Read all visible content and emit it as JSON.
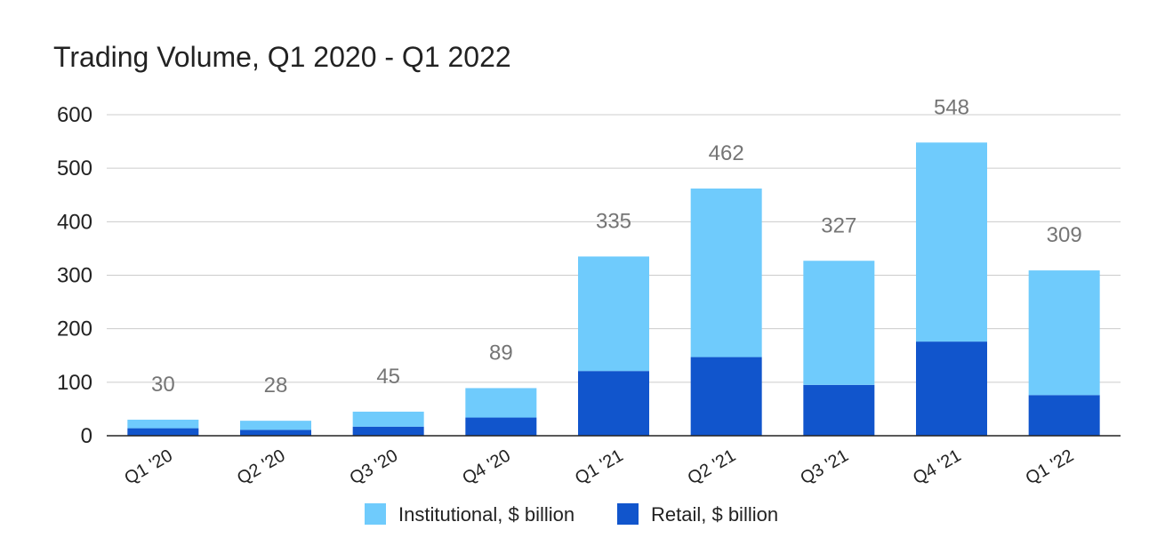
{
  "chart_data": {
    "type": "bar",
    "stacked": true,
    "title": "Trading Volume, Q1 2020 - Q1 2022",
    "categories": [
      "Q1 '20",
      "Q2 '20",
      "Q3 '20",
      "Q4 '20",
      "Q1 '21",
      "Q2 '21",
      "Q3 '21",
      "Q4 '21",
      "Q1 '22"
    ],
    "series": [
      {
        "name": "Retail, $ billion",
        "color": "#1155cc",
        "values": [
          14,
          11,
          17,
          34,
          121,
          147,
          95,
          176,
          76
        ]
      },
      {
        "name": "Institutional, $ billion",
        "color": "#6fcbfc",
        "values": [
          16,
          17,
          28,
          55,
          214,
          315,
          232,
          372,
          233
        ]
      }
    ],
    "totals": [
      30,
      28,
      45,
      89,
      335,
      462,
      327,
      548,
      309
    ],
    "ylim": [
      0,
      600
    ],
    "yticks": [
      0,
      100,
      200,
      300,
      400,
      500,
      600
    ],
    "xlabel": "",
    "ylabel": "",
    "grid": true,
    "legend_position": "bottom",
    "legend": [
      {
        "label": "Institutional, $ billion",
        "color": "#6fcbfc"
      },
      {
        "label": "Retail, $ billion",
        "color": "#1155cc"
      }
    ]
  }
}
